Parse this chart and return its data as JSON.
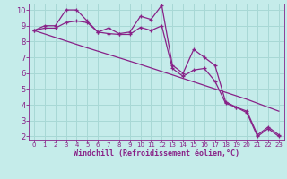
{
  "xlabel": "Windchill (Refroidissement éolien,°C)",
  "bg_color": "#c5ecea",
  "grid_color": "#a8d8d5",
  "line_color": "#882288",
  "spine_color": "#882288",
  "xlim": [
    -0.5,
    23.5
  ],
  "ylim": [
    1.8,
    10.4
  ],
  "yticks": [
    2,
    3,
    4,
    5,
    6,
    7,
    8,
    9,
    10
  ],
  "xticks": [
    0,
    1,
    2,
    3,
    4,
    5,
    6,
    7,
    8,
    9,
    10,
    11,
    12,
    13,
    14,
    15,
    16,
    17,
    18,
    19,
    20,
    21,
    22,
    23
  ],
  "series1_x": [
    0,
    1,
    2,
    3,
    4,
    5,
    6,
    7,
    8,
    9,
    10,
    11,
    12,
    13,
    14,
    15,
    16,
    17,
    18,
    19,
    20,
    21,
    22,
    23
  ],
  "series1_y": [
    8.7,
    9.0,
    9.0,
    10.0,
    10.0,
    9.3,
    8.6,
    8.85,
    8.5,
    8.6,
    9.6,
    9.4,
    10.3,
    6.5,
    6.0,
    7.5,
    7.0,
    6.5,
    4.2,
    3.85,
    3.5,
    2.0,
    2.5,
    2.0
  ],
  "series2_x": [
    0,
    1,
    2,
    3,
    4,
    5,
    6,
    7,
    8,
    9,
    10,
    11,
    12,
    13,
    14,
    15,
    16,
    17,
    18,
    19,
    20,
    21,
    22,
    23
  ],
  "series2_y": [
    8.7,
    8.85,
    8.85,
    9.2,
    9.3,
    9.2,
    8.6,
    8.5,
    8.45,
    8.45,
    8.9,
    8.7,
    9.0,
    6.3,
    5.8,
    6.2,
    6.3,
    5.5,
    4.1,
    3.85,
    3.6,
    2.1,
    2.6,
    2.1
  ],
  "series3_x": [
    0,
    5,
    10,
    15,
    20,
    23
  ],
  "series3_y": [
    8.7,
    7.6,
    6.55,
    5.45,
    4.35,
    3.6
  ],
  "xlabel_fontsize": 6,
  "tick_fontsize_x": 5,
  "tick_fontsize_y": 6
}
